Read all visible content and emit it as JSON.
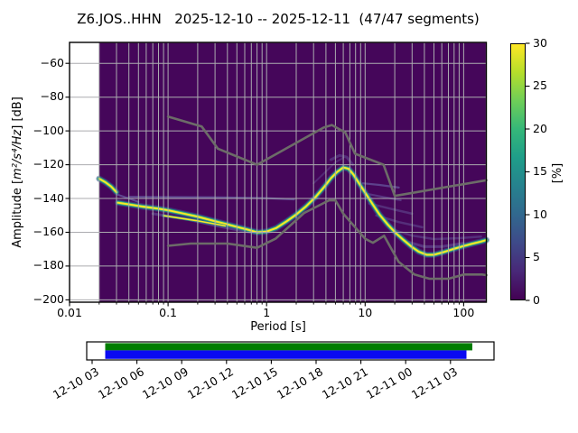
{
  "title": "Z6.JOS..HHN   2025-12-10 -- 2025-12-11  (47/47 segments)",
  "axes": {
    "xlabel": "Period [s]",
    "ylabel_prefix": "Amplitude [",
    "ylabel_math": "m²/s⁴/Hz",
    "ylabel_suffix": "] [dB]",
    "x_tick_labels": [
      "0.01",
      "0.1",
      "1",
      "10",
      "100"
    ],
    "y_tick_labels": [
      "−200",
      "−180",
      "−160",
      "−140",
      "−120",
      "−100",
      "−80",
      "−60"
    ]
  },
  "colorbar": {
    "label": "[%]",
    "tick_labels": [
      "0",
      "5",
      "10",
      "15",
      "20",
      "25",
      "30"
    ],
    "gradient": [
      "#440154",
      "#482878",
      "#3e4a89",
      "#31688e",
      "#26828e",
      "#1f9e89",
      "#35b779",
      "#6ece58",
      "#b5de2b",
      "#fde725"
    ]
  },
  "coverage": {
    "time_tick_labels": [
      "12-10 03",
      "12-10 06",
      "12-10 09",
      "12-10 12",
      "12-10 15",
      "12-10 18",
      "12-10 21",
      "12-11 00",
      "12-11 03"
    ],
    "green": "#007d00",
    "blue": "#0a0af2"
  },
  "chart_data": {
    "type": "heatmap",
    "title": "Z6.JOS..HHN   2025-12-10 -- 2025-12-11  (47/47 segments)",
    "xlabel": "Period [s]",
    "ylabel": "Amplitude [m²/s⁴/Hz] [dB]",
    "x_scale": "log",
    "xlim": [
      0.01,
      170
    ],
    "ylim": [
      -201.4,
      -47.6
    ],
    "x_ticks": [
      0.01,
      0.1,
      1,
      10,
      100
    ],
    "y_ticks": [
      -200,
      -180,
      -160,
      -140,
      -120,
      -100,
      -80,
      -60
    ],
    "grid": true,
    "colorbar_label": "[%]",
    "colorbar_ticks": [
      0,
      5,
      10,
      15,
      20,
      25,
      30
    ],
    "colorbar_range": [
      0,
      30
    ],
    "histogram_period_range": [
      0.02,
      170
    ],
    "background_color": "#45065a",
    "grid_color": "#ababaf",
    "model_color": "#6c6c68",
    "streak_color": "#7b8ac8",
    "band_layers": {
      "main": [
        [
          "#3b528b",
          0.5,
          7
        ],
        [
          "#21918c",
          0.95,
          4.6
        ],
        [
          "#5ec962",
          0.95,
          2.9
        ],
        [
          "#fde725",
          1,
          1.9
        ]
      ],
      "thin": [
        [
          "#21918c",
          0.85,
          3.2
        ],
        [
          "#fde725",
          1,
          1.6
        ]
      ]
    },
    "series": [
      {
        "name": "psd-mode-steep",
        "layers": "main",
        "points": [
          [
            0.02,
            -128.3
          ],
          [
            0.023,
            -130.3
          ],
          [
            0.0265,
            -133
          ],
          [
            0.03,
            -136.3
          ]
        ]
      },
      {
        "name": "psd-mode-main",
        "layers": "main",
        "points": [
          [
            0.031,
            -142.5
          ],
          [
            0.04,
            -143.5
          ],
          [
            0.055,
            -144.8
          ],
          [
            0.08,
            -146
          ],
          [
            0.1,
            -147
          ],
          [
            0.14,
            -148.8
          ],
          [
            0.2,
            -150.8
          ],
          [
            0.28,
            -153
          ],
          [
            0.38,
            -155
          ],
          [
            0.5,
            -156.8
          ],
          [
            0.65,
            -158.5
          ],
          [
            0.8,
            -160
          ],
          [
            1.0,
            -159.6
          ],
          [
            1.25,
            -157.5
          ],
          [
            1.6,
            -153.5
          ],
          [
            2.0,
            -149.5
          ],
          [
            2.5,
            -144.8
          ],
          [
            3.1,
            -139.5
          ],
          [
            3.8,
            -133.5
          ],
          [
            4.5,
            -128
          ],
          [
            5.2,
            -124.3
          ],
          [
            6.0,
            -121.6
          ],
          [
            6.8,
            -122.4
          ],
          [
            7.6,
            -125.8
          ],
          [
            8.5,
            -130.2
          ],
          [
            10.0,
            -136.5
          ],
          [
            11.8,
            -143
          ],
          [
            14.0,
            -149.5
          ],
          [
            17.0,
            -155.5
          ],
          [
            20.5,
            -160.5
          ],
          [
            24.5,
            -164.5
          ],
          [
            29.5,
            -168.5
          ],
          [
            35.0,
            -171.5
          ],
          [
            42.0,
            -173.3
          ],
          [
            50.0,
            -173.3
          ],
          [
            62.0,
            -171.8
          ],
          [
            78.0,
            -170
          ],
          [
            98.0,
            -168.3
          ],
          [
            122.0,
            -166.8
          ],
          [
            148.0,
            -165.6
          ],
          [
            170.0,
            -164.6
          ]
        ]
      },
      {
        "name": "psd-mode-secondary",
        "layers": "thin",
        "points": [
          [
            0.09,
            -150.2
          ],
          [
            0.13,
            -151.6
          ],
          [
            0.19,
            -153
          ],
          [
            0.27,
            -154.6
          ],
          [
            0.38,
            -156.2
          ]
        ]
      }
    ],
    "noise_models": {
      "nhnm": [
        [
          0.1,
          -91.5
        ],
        [
          0.22,
          -97.4
        ],
        [
          0.32,
          -110.5
        ],
        [
          0.8,
          -120
        ],
        [
          3.8,
          -98
        ],
        [
          4.6,
          -96.5
        ],
        [
          6.3,
          -101
        ],
        [
          7.9,
          -113.5
        ],
        [
          15.4,
          -120
        ],
        [
          20,
          -138.5
        ],
        [
          170,
          -129.2
        ]
      ],
      "nlnm": [
        [
          0.1,
          -168
        ],
        [
          0.17,
          -166.7
        ],
        [
          0.4,
          -166.7
        ],
        [
          0.8,
          -169.2
        ],
        [
          1.24,
          -163.7
        ],
        [
          2.4,
          -148.6
        ],
        [
          4.3,
          -141.1
        ],
        [
          5,
          -141.1
        ],
        [
          6,
          -149
        ],
        [
          10,
          -163.8
        ],
        [
          12,
          -166.2
        ],
        [
          15.6,
          -162.1
        ],
        [
          21.9,
          -177.5
        ],
        [
          31.6,
          -185
        ],
        [
          45,
          -187.5
        ],
        [
          70,
          -187.5
        ],
        [
          101,
          -185
        ],
        [
          154,
          -185
        ],
        [
          170,
          -185.4
        ]
      ]
    },
    "faint_streaks": [
      {
        "points": [
          [
            0.04,
            -139
          ],
          [
            0.3,
            -139.3
          ],
          [
            1.0,
            -139.8
          ],
          [
            1.9,
            -140.5
          ]
        ],
        "width": 2.2,
        "opacity": 0.5
      },
      {
        "points": [
          [
            0.03,
            -137.5
          ],
          [
            0.04,
            -140
          ],
          [
            0.05,
            -142
          ]
        ],
        "width": 2,
        "opacity": 0.5
      },
      {
        "points": [
          [
            0.07,
            -149
          ],
          [
            0.15,
            -152
          ],
          [
            0.3,
            -156
          ],
          [
            0.5,
            -158.5
          ],
          [
            0.75,
            -160.5
          ]
        ],
        "width": 3,
        "opacity": 0.35
      },
      {
        "points": [
          [
            9.5,
            -131
          ],
          [
            14,
            -132
          ],
          [
            22,
            -133.5
          ]
        ],
        "width": 2.2,
        "opacity": 0.45
      },
      {
        "points": [
          [
            10,
            -137
          ],
          [
            15,
            -139
          ],
          [
            23,
            -141
          ]
        ],
        "width": 2.2,
        "opacity": 0.35
      },
      {
        "points": [
          [
            11,
            -143
          ],
          [
            18,
            -146
          ],
          [
            30,
            -149
          ]
        ],
        "width": 2.5,
        "opacity": 0.3
      },
      {
        "points": [
          [
            13,
            -150
          ],
          [
            22,
            -154
          ],
          [
            38,
            -157
          ]
        ],
        "width": 2.5,
        "opacity": 0.3
      },
      {
        "points": [
          [
            18,
            -158
          ],
          [
            30,
            -162
          ],
          [
            50,
            -164
          ],
          [
            90,
            -163.5
          ],
          [
            150,
            -162.5
          ]
        ],
        "width": 2.5,
        "opacity": 0.3
      },
      {
        "points": [
          [
            28,
            -166
          ],
          [
            40,
            -168.5
          ],
          [
            60,
            -168.5
          ],
          [
            100,
            -166.5
          ]
        ],
        "width": 3,
        "opacity": 0.35
      },
      {
        "points": [
          [
            4.5,
            -117
          ],
          [
            5.5,
            -114.5
          ],
          [
            6.5,
            -115.5
          ],
          [
            7.5,
            -120
          ]
        ],
        "width": 3,
        "opacity": 0.3
      },
      {
        "points": [
          [
            3.0,
            -131
          ],
          [
            4.0,
            -124
          ],
          [
            5.0,
            -118.5
          ],
          [
            6.0,
            -116
          ]
        ],
        "width": 2,
        "opacity": 0.25
      }
    ],
    "coverage_time_ticks": [
      "12-10 03",
      "12-10 06",
      "12-10 09",
      "12-10 12",
      "12-10 15",
      "12-10 18",
      "12-10 21",
      "12-11 00",
      "12-11 03"
    ]
  }
}
